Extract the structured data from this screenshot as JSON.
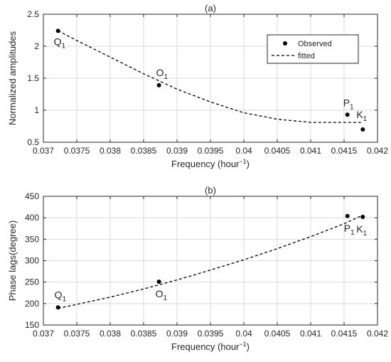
{
  "chart_data": [
    {
      "type": "scatter",
      "title": "(a)",
      "xlabel": "Frequency (hour",
      "xlabel_sup": "−1",
      "xlabel_tail": ")",
      "ylabel": "Normalized amplitudes",
      "xlim": [
        0.037,
        0.042
      ],
      "ylim": [
        0.5,
        2.5
      ],
      "xticks": [
        0.037,
        0.0375,
        0.038,
        0.0385,
        0.039,
        0.0395,
        0.04,
        0.0405,
        0.041,
        0.0415,
        0.042
      ],
      "xtick_labels": [
        "0.037",
        "0.0375",
        "0.038",
        "0.0385",
        "0.039",
        "0.0395",
        "0.04",
        "0.0405",
        "0.041",
        "0.0415",
        "0.042"
      ],
      "yticks": [
        0.5,
        1,
        1.5,
        2,
        2.5
      ],
      "ytick_labels": [
        "0.5",
        "1",
        "1.5",
        "2",
        "2.5"
      ],
      "grid": true,
      "legend": {
        "placement": "top-right",
        "entries": [
          {
            "label": "Observed",
            "marker": "dot"
          },
          {
            "label": "fitted",
            "marker": "dashed-line"
          }
        ]
      },
      "series": [
        {
          "name": "Observed",
          "kind": "points",
          "points": [
            {
              "label": "Q",
              "sub": "1",
              "x": 0.03722,
              "y": 2.24
            },
            {
              "label": "O",
              "sub": "1",
              "x": 0.03873,
              "y": 1.39
            },
            {
              "label": "P",
              "sub": "1",
              "x": 0.04155,
              "y": 0.93
            },
            {
              "label": "K",
              "sub": "1",
              "x": 0.04178,
              "y": 0.7
            }
          ]
        },
        {
          "name": "fitted",
          "kind": "line",
          "x": [
            0.03722,
            0.0375,
            0.038,
            0.0385,
            0.039,
            0.0395,
            0.04,
            0.0405,
            0.041,
            0.0415,
            0.04178
          ],
          "y": [
            2.24,
            2.09,
            1.83,
            1.57,
            1.33,
            1.13,
            0.96,
            0.86,
            0.81,
            0.81,
            0.81
          ]
        }
      ]
    },
    {
      "type": "scatter",
      "title": "(b)",
      "xlabel": "Frequency (hour",
      "xlabel_sup": "−1",
      "xlabel_tail": ")",
      "ylabel": "Phase lags(degree)",
      "xlim": [
        0.037,
        0.042
      ],
      "ylim": [
        150,
        450
      ],
      "xticks": [
        0.037,
        0.0375,
        0.038,
        0.0385,
        0.039,
        0.0395,
        0.04,
        0.0405,
        0.041,
        0.0415,
        0.042
      ],
      "xtick_labels": [
        "0.037",
        "0.0375",
        "0.038",
        "0.0385",
        "0.039",
        "0.0395",
        "0.04",
        "0.0405",
        "0.041",
        "0.0415",
        "0.042"
      ],
      "yticks": [
        150,
        200,
        250,
        300,
        350,
        400,
        450
      ],
      "ytick_labels": [
        "150",
        "200",
        "250",
        "300",
        "350",
        "400",
        "450"
      ],
      "grid": true,
      "series": [
        {
          "name": "Observed",
          "kind": "points",
          "points": [
            {
              "label": "Q",
              "sub": "1",
              "x": 0.03722,
              "y": 191
            },
            {
              "label": "O",
              "sub": "1",
              "x": 0.03873,
              "y": 251
            },
            {
              "label": "P",
              "sub": "1",
              "x": 0.04155,
              "y": 404
            },
            {
              "label": "K",
              "sub": "1",
              "x": 0.04178,
              "y": 402
            }
          ]
        },
        {
          "name": "fitted",
          "kind": "line",
          "x": [
            0.03722,
            0.0375,
            0.038,
            0.0385,
            0.039,
            0.0395,
            0.04,
            0.0405,
            0.041,
            0.0415,
            0.04178
          ],
          "y": [
            189,
            198,
            215,
            234,
            255,
            278,
            302,
            328,
            356,
            386,
            406
          ]
        }
      ]
    }
  ]
}
